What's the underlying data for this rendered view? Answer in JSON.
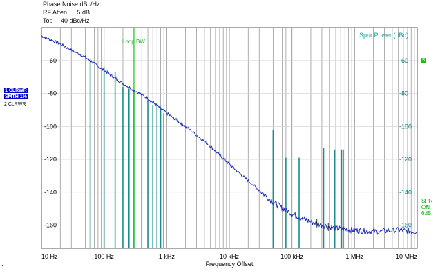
{
  "header": {
    "line1": "Phase Noise  dBc/Hz",
    "line2_label": "RF Atten",
    "line2_value": "5 dB",
    "line3_label": "Top",
    "line3_value": "-40 dBc/Hz"
  },
  "left_tags": {
    "tag1": "1 CLRWR",
    "tag2": "SMTH 1%",
    "tag3": "2 CLRWR"
  },
  "marker_label": "Loop BW",
  "spur_label": "Spur Power (dBc)",
  "marker_box": "S",
  "spr_label": "SPR ON",
  "th_label": "TH 6dB",
  "footer": {
    "xlabel": "Frequency Offset",
    "dot": "."
  },
  "colors": {
    "trace": "#1f2fb4",
    "spur": "#1a8c8c",
    "marker": "#22cc22",
    "grid": "#9a9a9a",
    "black_trace": "#000000"
  },
  "chart_data": {
    "type": "line",
    "title": "",
    "xlabel": "Frequency Offset",
    "ylabel": "Phase Noise dBc/Hz",
    "x_scale": "log",
    "xlim": [
      10,
      10000000
    ],
    "ylim": [
      -174,
      -40
    ],
    "y_ticks": [
      -60,
      -80,
      -100,
      -120,
      -140,
      -160
    ],
    "y_tick_labels": [
      "-60",
      "-80",
      "-100",
      "-120",
      "-140",
      "-160"
    ],
    "y2_label": "Spur Power (dBc)",
    "y2_tick_labels": [
      "-60",
      "-80",
      "-100",
      "-120",
      "-140",
      "-160"
    ],
    "x_ticks": [
      10,
      100,
      1000,
      10000,
      100000,
      1000000,
      10000000
    ],
    "x_tick_labels": [
      "10 Hz",
      "100 Hz",
      "1 kHz",
      "10 kHz",
      "100 kHz",
      "1 MHz",
      "10 MHz"
    ],
    "marker_x": 300,
    "series": [
      {
        "x": [
          10,
          20,
          50,
          100,
          200,
          500,
          1000,
          2000,
          5000,
          10000,
          20000,
          50000,
          100000,
          200000,
          500000,
          1000000,
          2000000,
          5000000,
          10000000
        ],
        "y": [
          -45,
          -50,
          -58,
          -66,
          -74,
          -83,
          -92,
          -100,
          -112,
          -123,
          -133,
          -146,
          -153,
          -158,
          -162,
          -163,
          -164,
          -163,
          -164
        ]
      }
    ],
    "spurs": {
      "x": [
        60,
        100,
        150,
        200,
        250,
        300,
        400,
        500,
        600,
        700,
        800,
        900,
        50000,
        80000,
        130000,
        320000,
        480000,
        620000,
        660000
      ],
      "y": [
        -59,
        -64,
        -67,
        -76,
        -77,
        -78,
        -80,
        -84,
        -87,
        -87,
        -89,
        -92,
        -102,
        -119,
        -119,
        -113,
        -114,
        -114,
        -114
      ]
    }
  }
}
